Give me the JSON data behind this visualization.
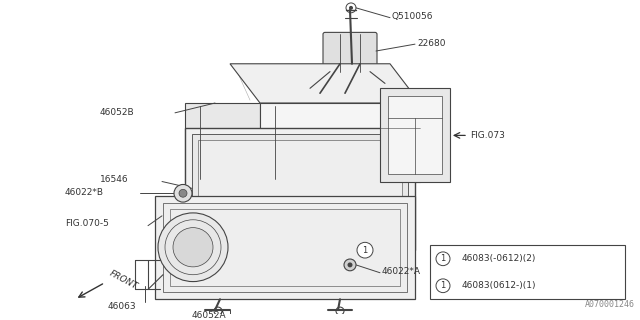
{
  "bg_color": "#ffffff",
  "line_color": "#444444",
  "text_color": "#333333",
  "watermark": "A070001246",
  "legend_row1": "46083(-0612)(2)",
  "legend_row2": "46083(0612-)(1)",
  "fig_w": 6.4,
  "fig_h": 3.2,
  "dpi": 100
}
